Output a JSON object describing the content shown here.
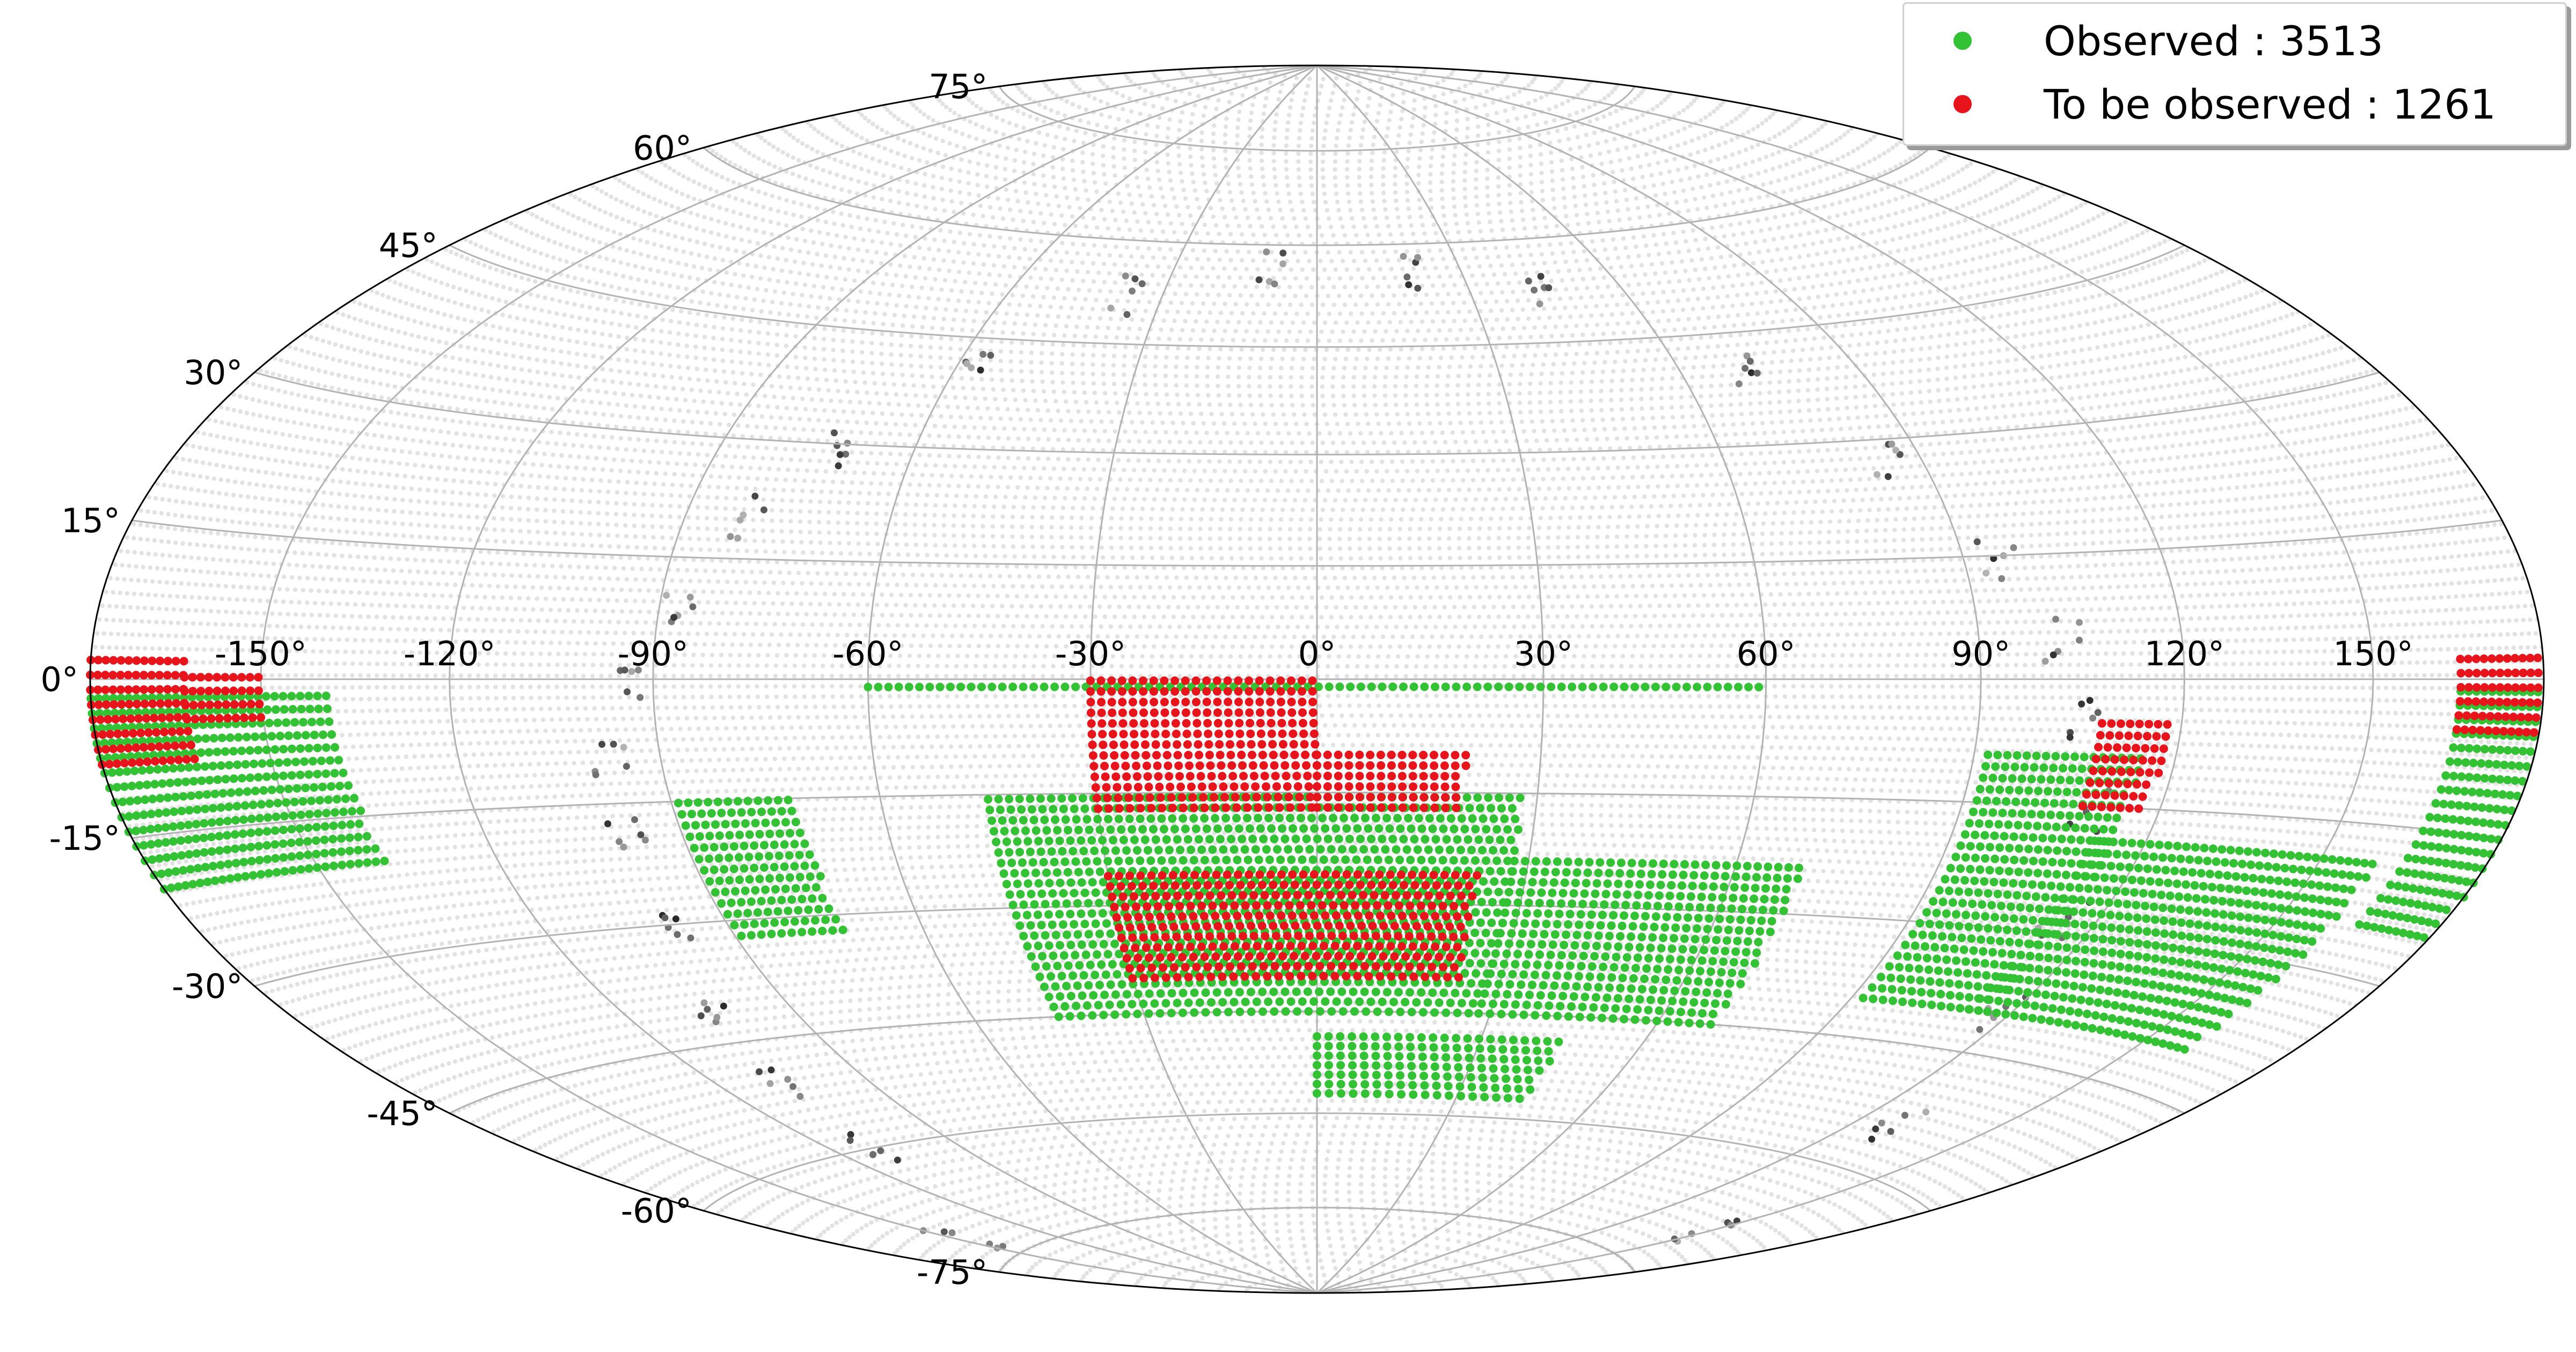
{
  "chart_data": {
    "type": "scatter",
    "projection": "hammer",
    "grid": true,
    "title": "",
    "xlabel": "",
    "ylabel": "",
    "xlim": [
      -180,
      180
    ],
    "ylim": [
      -90,
      90
    ],
    "lon_ticks": [
      "-150°",
      "-120°",
      "-90°",
      "-60°",
      "-30°",
      "0°",
      "30°",
      "60°",
      "90°",
      "120°",
      "150°"
    ],
    "lat_ticks": [
      "75°",
      "60°",
      "45°",
      "30°",
      "15°",
      "0°",
      "-15°",
      "-30°",
      "-45°",
      "-60°",
      "-75°"
    ],
    "colors": {
      "observed": "#33c233",
      "to_be_observed": "#e8141c",
      "background_field": "#e2e2e2",
      "grid": "#b3b3b3"
    },
    "legend_position": "top-right",
    "series": [
      {
        "name": "Observed",
        "count": 3513,
        "color": "#33c233",
        "regions": [
          {
            "lon": [
              -180,
              -138
            ],
            "lat": [
              -20,
              -1
            ]
          },
          {
            "lon": [
              165,
              180
            ],
            "lat": [
              -25,
              0
            ]
          },
          {
            "lon": [
              -89,
              -72
            ],
            "lat": [
              -32,
              -14
            ]
          },
          {
            "lon": [
              -60,
              60
            ],
            "lat": [
              -1,
              0
            ]
          },
          {
            "lon": [
              -45,
              28
            ],
            "lat": [
              -45,
              -15
            ]
          },
          {
            "lon": [
              28,
              70
            ],
            "lat": [
              -45,
              -23
            ]
          },
          {
            "lon": [
              0,
              45
            ],
            "lat": [
              -57,
              -48
            ]
          },
          {
            "lon": [
              92,
              115
            ],
            "lat": [
              -40,
              -8
            ]
          },
          {
            "lon": [
              112,
              160
            ],
            "lat": [
              -40,
              -18
            ]
          }
        ]
      },
      {
        "name": "To be observed",
        "count": 1261,
        "color": "#e8141c",
        "regions": [
          {
            "lon": [
              -180,
              -163
            ],
            "lat": [
              -8,
              3
            ]
          },
          {
            "lon": [
              -163,
              -150
            ],
            "lat": [
              -4,
              1
            ]
          },
          {
            "lon": [
              -30,
              0
            ],
            "lat": [
              -17,
              0
            ]
          },
          {
            "lon": [
              0,
              20
            ],
            "lat": [
              -17,
              -10
            ]
          },
          {
            "lon": [
              -30,
              23
            ],
            "lat": [
              -40,
              -25
            ]
          },
          {
            "lon": [
              108,
              118
            ],
            "lat": [
              -15,
              -5
            ]
          },
          {
            "lon": [
              165,
              180
            ],
            "lat": [
              -5,
              3
            ]
          }
        ]
      }
    ],
    "legend": [
      {
        "marker": "observed",
        "label": "Observed :  3513"
      },
      {
        "marker": "to_be_observed",
        "label": "To be observed :  1261"
      }
    ]
  }
}
